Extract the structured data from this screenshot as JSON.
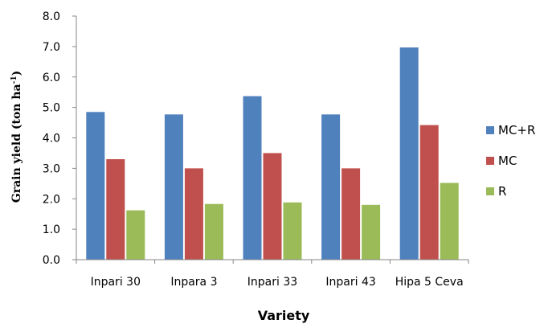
{
  "chart_data": {
    "type": "bar",
    "title": "",
    "xlabel": "Variety",
    "ylabel_main": "Grain yield (ton ha",
    "ylabel_sup": "-1",
    "ylabel_close": ")",
    "categories": [
      "Inpari 30",
      "Inpara 3",
      "Inpari 33",
      "Inpari 43",
      "Hipa 5 Ceva"
    ],
    "series": [
      {
        "name": "MC+R",
        "color": "#4F81BD",
        "values": [
          4.85,
          4.77,
          5.37,
          4.77,
          6.97
        ]
      },
      {
        "name": "MC",
        "color": "#C0504D",
        "values": [
          3.3,
          3.0,
          3.5,
          3.0,
          4.42
        ]
      },
      {
        "name": "R",
        "color": "#9BBB59",
        "values": [
          1.62,
          1.83,
          1.88,
          1.8,
          2.52
        ]
      }
    ],
    "ylim": [
      0,
      8
    ],
    "yticks": [
      "0.0",
      "1.0",
      "2.0",
      "3.0",
      "4.0",
      "5.0",
      "6.0",
      "7.0",
      "8.0"
    ],
    "grid": false,
    "legend_position": "right"
  }
}
